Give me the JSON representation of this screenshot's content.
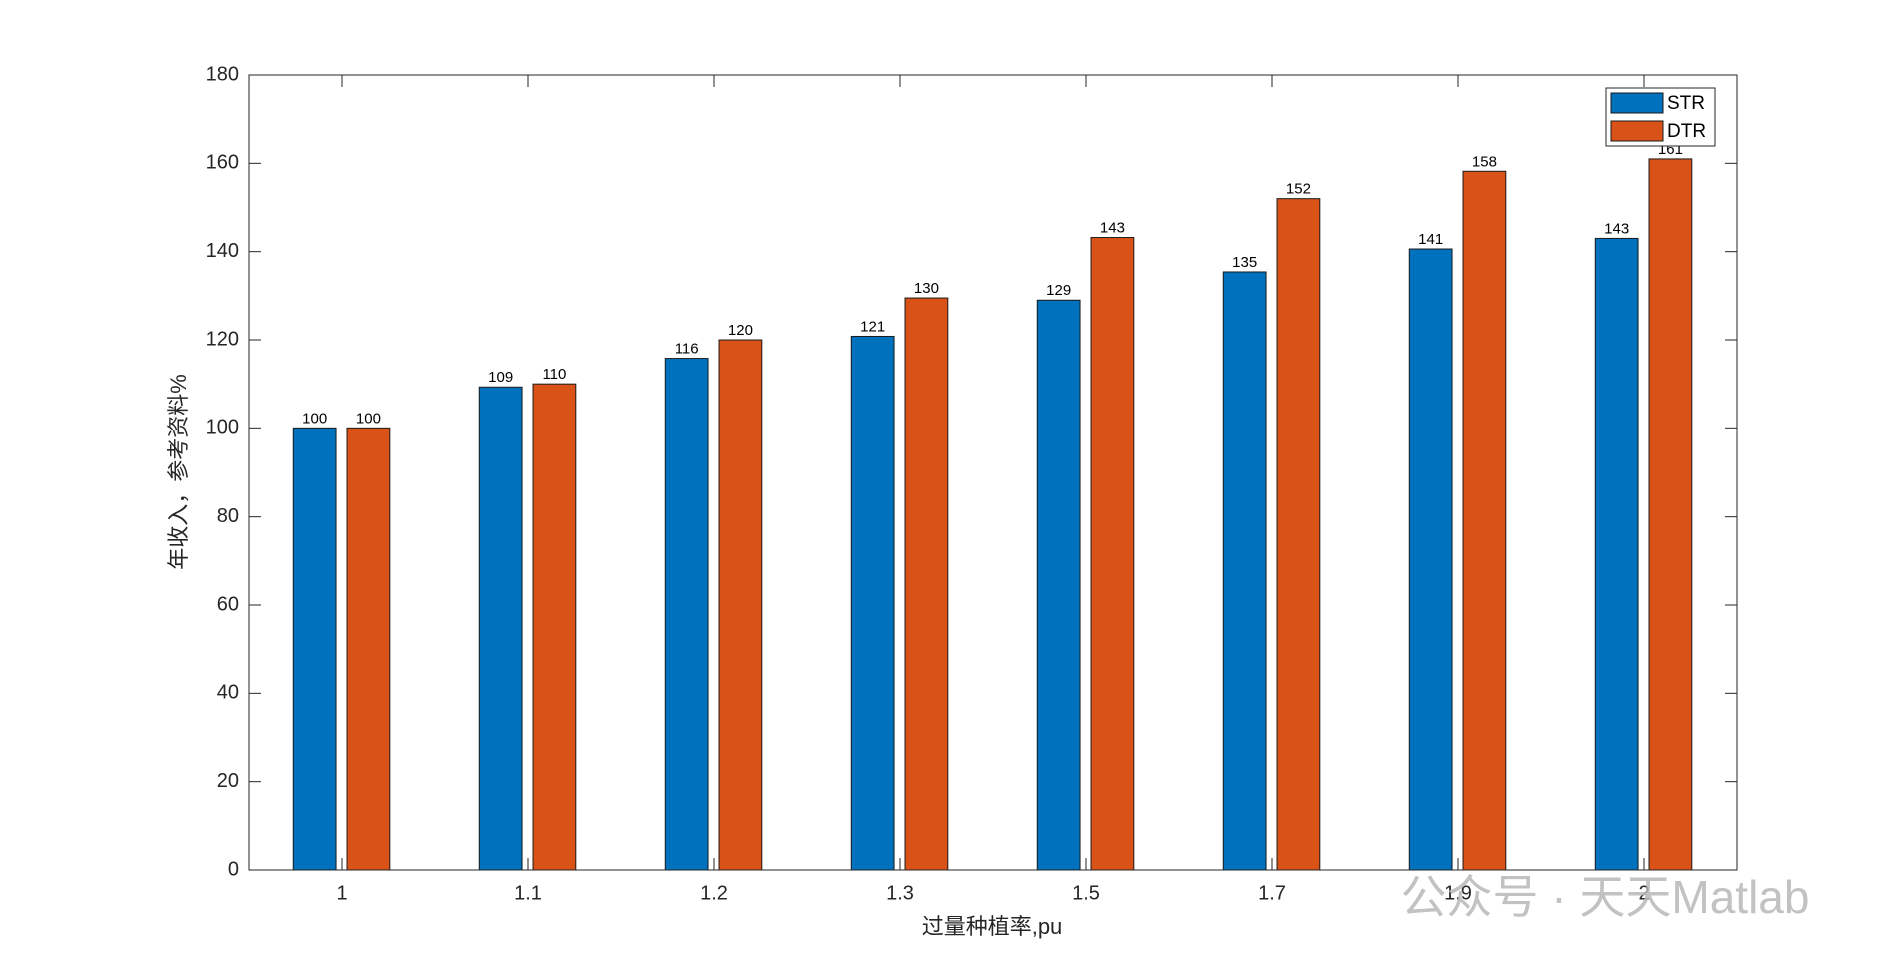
{
  "chart_data": {
    "type": "bar",
    "xlabel": "过量种植率,pu",
    "ylabel": "年收入，参考资料%",
    "categories": [
      "1",
      "1.1",
      "1.2",
      "1.3",
      "1.5",
      "1.7",
      "1.9",
      "2"
    ],
    "series": [
      {
        "name": "STR",
        "color": "#0072bd",
        "values": [
          100,
          109.3,
          115.8,
          120.8,
          129,
          135.4,
          140.6,
          143
        ],
        "value_labels": [
          "100",
          "109",
          "116",
          "121",
          "129",
          "135",
          "141",
          "143"
        ]
      },
      {
        "name": "DTR",
        "color": "#d95319",
        "values": [
          100,
          110,
          120,
          129.5,
          143.2,
          152,
          158.2,
          161
        ],
        "value_labels": [
          "100",
          "110",
          "120",
          "130",
          "143",
          "152",
          "158",
          "161"
        ]
      }
    ],
    "ylim": [
      0,
      180
    ],
    "yticks": [
      0,
      20,
      40,
      60,
      80,
      100,
      120,
      140,
      160,
      180
    ],
    "legend": "upper right",
    "watermark": "公众号 · 天天Matlab"
  }
}
